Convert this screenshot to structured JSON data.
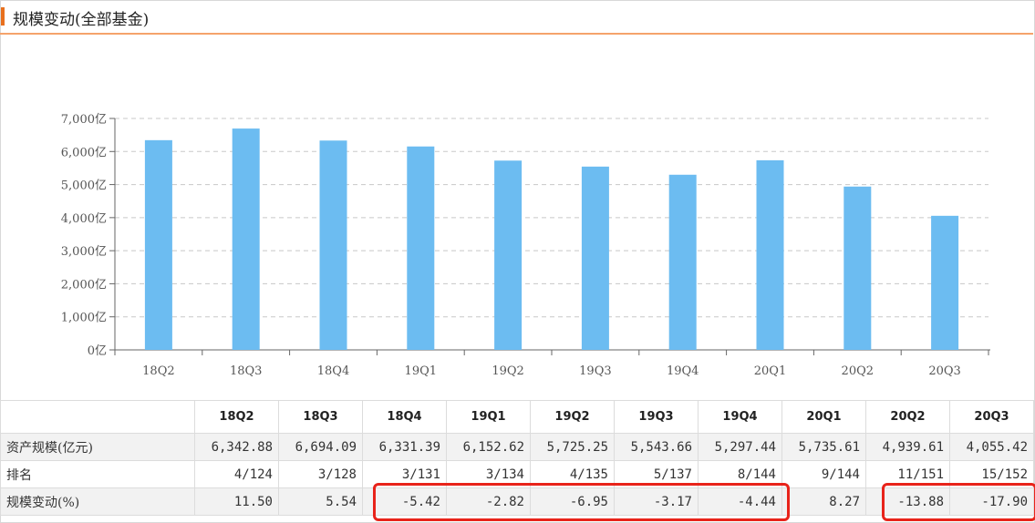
{
  "header": {
    "title": "规模变动(全部基金)"
  },
  "colors": {
    "bar": "#6cbcf1",
    "grid": "#c8c8c8",
    "accent": "#e8701e",
    "highlight": "#e8231a"
  },
  "chart_data": {
    "type": "bar",
    "categories": [
      "18Q2",
      "18Q3",
      "18Q4",
      "19Q1",
      "19Q2",
      "19Q3",
      "19Q4",
      "20Q1",
      "20Q2",
      "20Q3"
    ],
    "values": [
      6342.88,
      6694.09,
      6331.39,
      6152.62,
      5725.25,
      5543.66,
      5297.44,
      5735.61,
      4939.61,
      4055.42
    ],
    "ylim": [
      0,
      7000
    ],
    "yticks": [
      0,
      1000,
      2000,
      3000,
      4000,
      5000,
      6000,
      7000
    ],
    "ytick_labels": [
      "0亿",
      "1,000亿",
      "2,000亿",
      "3,000亿",
      "4,000亿",
      "5,000亿",
      "6,000亿",
      "7,000亿"
    ],
    "grid": true
  },
  "table": {
    "columns": [
      "18Q2",
      "18Q3",
      "18Q4",
      "19Q1",
      "19Q2",
      "19Q3",
      "19Q4",
      "20Q1",
      "20Q2",
      "20Q3"
    ],
    "rows": [
      {
        "label": "资产规模(亿元)",
        "cells": [
          "6,342.88",
          "6,694.09",
          "6,331.39",
          "6,152.62",
          "5,725.25",
          "5,543.66",
          "5,297.44",
          "5,735.61",
          "4,939.61",
          "4,055.42"
        ]
      },
      {
        "label": "排名",
        "cells": [
          "4/124",
          "3/128",
          "3/131",
          "3/134",
          "4/135",
          "5/137",
          "8/144",
          "9/144",
          "11/151",
          "15/152"
        ]
      },
      {
        "label": "规模变动(%)",
        "cells": [
          "11.50",
          "5.54",
          "-5.42",
          "-2.82",
          "-6.95",
          "-3.17",
          "-4.44",
          "8.27",
          "-13.88",
          "-17.90"
        ]
      }
    ]
  }
}
